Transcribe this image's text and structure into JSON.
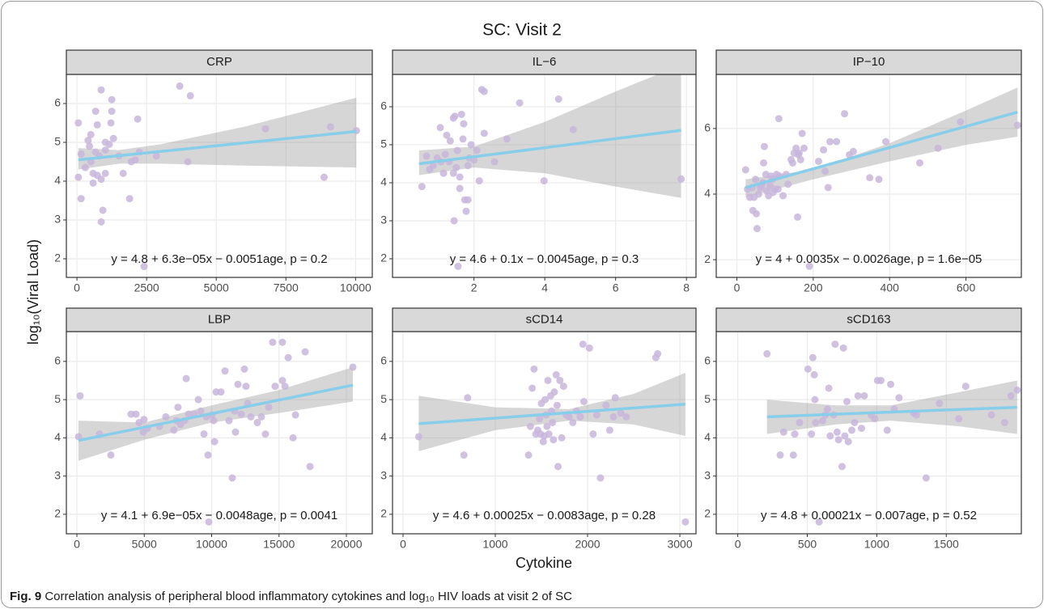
{
  "figure": {
    "title": "SC: Visit 2",
    "x_label": "Cytokine",
    "y_label": "log₁₀(Viral Load)",
    "caption_label": "Fig. 9",
    "caption_text": "Correlation analysis of peripheral blood inflammatory cytokines and log₁₀ HIV loads at visit 2 of SC"
  },
  "chart_data": [
    {
      "type": "scatter",
      "title": "CRP",
      "color": "#c8b6dc",
      "x": [
        50,
        150,
        50,
        150,
        300,
        400,
        500,
        450,
        500,
        580,
        580,
        670,
        730,
        670,
        730,
        800,
        870,
        870,
        870,
        930,
        1020,
        1020,
        1020,
        1160,
        1220,
        1250,
        1250,
        1310,
        1510,
        1660,
        1890,
        1950,
        2090,
        2180,
        2240,
        2410,
        2850,
        3690,
        3980,
        4070,
        6770,
        9100,
        8870,
        10030
      ],
      "y": [
        5.5,
        3.55,
        4.1,
        4.7,
        4.35,
        5.05,
        5.2,
        4.9,
        4.5,
        4.2,
        3.95,
        4.75,
        5.45,
        5.8,
        4.15,
        4.65,
        6.35,
        4.05,
        2.95,
        3.25,
        5.0,
        4.8,
        4.2,
        4.95,
        5.5,
        6.1,
        5.8,
        5.1,
        4.65,
        4.2,
        3.55,
        4.5,
        4.55,
        5.6,
        4.75,
        1.8,
        4.65,
        6.45,
        4.5,
        6.2,
        5.35,
        5.4,
        4.1,
        5.3
      ],
      "fit": {
        "x": [
          50,
          10030
        ],
        "y": [
          4.55,
          5.28
        ],
        "color": "#87ceeb"
      },
      "band": {
        "x": [
          50,
          1500,
          3000,
          6000,
          10030
        ],
        "lower": [
          4.3,
          4.45,
          4.45,
          4.4,
          4.35
        ],
        "upper": [
          4.85,
          4.8,
          4.95,
          5.4,
          6.15
        ],
        "color": "#999999"
      },
      "annotation": "y = 4.8 + 6.3e−05x − 0.0051age, p = 0.2",
      "xlim": [
        -380,
        10600
      ],
      "ylim": [
        1.52,
        6.75
      ],
      "xticks": [
        0,
        2500,
        5000,
        7500,
        10000
      ],
      "yticks": [
        2,
        3,
        4,
        5,
        6
      ],
      "grid": true
    },
    {
      "type": "scatter",
      "title": "IL−6",
      "color": "#c8b6dc",
      "x": [
        0.53,
        0.66,
        0.75,
        0.85,
        0.96,
        1.05,
        1.07,
        1.14,
        1.19,
        1.23,
        1.3,
        1.33,
        1.42,
        1.42,
        1.44,
        1.46,
        1.5,
        1.53,
        1.55,
        1.6,
        1.6,
        1.65,
        1.69,
        1.71,
        1.74,
        1.78,
        1.83,
        1.83,
        1.87,
        1.92,
        2.0,
        2.08,
        2.15,
        2.22,
        2.29,
        2.29,
        2.58,
        2.93,
        3.29,
        3.98,
        4.39,
        4.8,
        7.85
      ],
      "y": [
        3.9,
        4.7,
        4.35,
        4.45,
        4.65,
        5.45,
        4.55,
        4.25,
        4.75,
        5.25,
        4.55,
        5.1,
        5.7,
        4.25,
        3.0,
        5.75,
        4.4,
        4.85,
        1.8,
        3.85,
        4.15,
        5.8,
        5.15,
        5.55,
        3.55,
        3.25,
        3.55,
        4.45,
        4.65,
        5.0,
        4.6,
        4.85,
        4.05,
        6.45,
        6.4,
        5.3,
        4.55,
        5.15,
        6.1,
        4.05,
        6.2,
        5.4,
        4.1
      ],
      "fit": {
        "x": [
          0.45,
          7.85
        ],
        "y": [
          4.5,
          5.38
        ],
        "color": "#87ceeb"
      },
      "band": {
        "x": [
          0.45,
          2,
          4,
          6,
          7.85
        ],
        "lower": [
          4.2,
          4.4,
          4.25,
          3.9,
          3.6
        ],
        "upper": [
          4.85,
          4.95,
          5.6,
          6.4,
          7.1
        ],
        "color": "#999999"
      },
      "annotation": "y = 4.6 + 0.1x − 0.0045age, p = 0.3",
      "xlim": [
        -0.3,
        8.27
      ],
      "ylim": [
        1.51,
        6.85
      ],
      "xticks": [
        2,
        4,
        6,
        8
      ],
      "yticks": [
        2,
        3,
        4,
        5,
        6
      ],
      "grid": true
    },
    {
      "type": "scatter",
      "title": "IP−10",
      "color": "#c8b6dc",
      "x": [
        23,
        28,
        34,
        40,
        42,
        45,
        49,
        51,
        53,
        57,
        61,
        65,
        68,
        70,
        72,
        76,
        78,
        83,
        87,
        89,
        93,
        95,
        100,
        104,
        108,
        110,
        112,
        121,
        129,
        134,
        142,
        146,
        150,
        155,
        159,
        161,
        163,
        167,
        171,
        176,
        214,
        227,
        231,
        239,
        244,
        261,
        282,
        295,
        305,
        348,
        372,
        390,
        479,
        527,
        586,
        735,
        190
      ],
      "y": [
        4.74,
        4.15,
        3.9,
        4.2,
        3.5,
        3.9,
        4.45,
        3.4,
        2.95,
        4.0,
        4.2,
        4.25,
        4.35,
        4.95,
        5.45,
        4.6,
        4.1,
        3.95,
        4.25,
        4.55,
        4.45,
        4.05,
        4.15,
        4.6,
        4.15,
        6.3,
        4.55,
        3.95,
        4.6,
        4.3,
        5.05,
        4.95,
        5.25,
        5.4,
        3.3,
        5.2,
        5.25,
        5.05,
        5.85,
        5.4,
        5.0,
        5.35,
        4.7,
        4.2,
        5.6,
        5.6,
        6.45,
        5.2,
        5.3,
        4.5,
        4.45,
        5.6,
        4.95,
        5.4,
        6.2,
        6.1,
        1.8
      ],
      "fit": {
        "x": [
          23,
          735
        ],
        "y": [
          4.2,
          6.5
        ],
        "color": "#87ceeb"
      },
      "band": {
        "x": [
          23,
          200,
          400,
          600,
          735
        ],
        "lower": [
          3.9,
          4.45,
          5.0,
          5.5,
          5.75
        ],
        "upper": [
          4.45,
          4.75,
          5.55,
          6.55,
          7.25
        ],
        "color": "#999999"
      },
      "annotation": "y = 4 + 0.0035x − 0.0026age, p = 1.6e−05",
      "xlim": [
        -54,
        745
      ],
      "ylim": [
        1.46,
        7.65
      ],
      "xticks": [
        0,
        200,
        400,
        600
      ],
      "yticks": [
        2,
        4,
        6
      ],
      "grid": true
    },
    {
      "type": "scatter",
      "title": "LBP",
      "color": "#c8b6dc",
      "x": [
        120,
        240,
        1680,
        2520,
        4020,
        4380,
        4620,
        4920,
        4980,
        5230,
        6130,
        6600,
        7200,
        7390,
        7500,
        7690,
        7990,
        8110,
        8290,
        8710,
        9010,
        9190,
        9430,
        9610,
        9730,
        9790,
        10030,
        10150,
        10210,
        10330,
        10690,
        10990,
        11290,
        11530,
        11710,
        11770,
        11950,
        12190,
        12430,
        12550,
        12670,
        12910,
        13390,
        13690,
        13990,
        14230,
        14530,
        14710,
        15250,
        15250,
        15440,
        15680,
        16040,
        16220,
        16940,
        17300,
        20480
      ],
      "y": [
        4.03,
        5.1,
        4.1,
        3.55,
        4.62,
        4.62,
        4.4,
        4.15,
        4.48,
        4.25,
        4.3,
        4.55,
        4.2,
        4.45,
        4.8,
        4.35,
        4.45,
        5.55,
        4.62,
        4.62,
        5.0,
        4.7,
        4.1,
        4.55,
        3.55,
        1.8,
        4.6,
        4.45,
        3.9,
        5.2,
        5.2,
        5.75,
        4.45,
        2.95,
        4.7,
        4.15,
        5.4,
        4.62,
        5.8,
        5.35,
        4.9,
        4.55,
        4.4,
        4.55,
        4.1,
        4.8,
        6.5,
        5.35,
        6.5,
        5.5,
        5.35,
        6.1,
        4.0,
        4.6,
        6.25,
        3.25,
        5.85
      ],
      "fit": {
        "x": [
          120,
          20480
        ],
        "y": [
          3.93,
          5.38
        ],
        "color": "#87ceeb"
      },
      "band": {
        "x": [
          120,
          5000,
          10000,
          15000,
          20480
        ],
        "lower": [
          3.4,
          3.95,
          4.4,
          4.65,
          4.95
        ],
        "upper": [
          4.45,
          4.4,
          4.85,
          5.25,
          5.85
        ],
        "color": "#999999"
      },
      "annotation": "y = 4.1 + 6.9e−05x − 0.0048age, p = 0.0041",
      "xlim": [
        -780,
        21920
      ],
      "ylim": [
        1.49,
        6.78
      ],
      "xticks": [
        0,
        5000,
        10000,
        15000,
        20000
      ],
      "yticks": [
        2,
        3,
        4,
        5,
        6
      ],
      "grid": true
    },
    {
      "type": "scatter",
      "title": "sCD14",
      "color": "#c8b6dc",
      "x": [
        170,
        660,
        700,
        1360,
        1380,
        1400,
        1420,
        1440,
        1460,
        1480,
        1490,
        1500,
        1520,
        1530,
        1540,
        1550,
        1560,
        1570,
        1580,
        1600,
        1610,
        1620,
        1630,
        1640,
        1660,
        1670,
        1680,
        1700,
        1720,
        1740,
        1770,
        1800,
        1840,
        1880,
        1920,
        1950,
        1960,
        2020,
        2060,
        2100,
        2140,
        2200,
        2240,
        2280,
        2300,
        2360,
        2420,
        2740,
        2760,
        3060
      ],
      "y": [
        4.03,
        3.55,
        5.05,
        3.55,
        4.3,
        5.3,
        5.8,
        4.1,
        4.2,
        4.5,
        4.1,
        4.9,
        3.9,
        4.05,
        5.0,
        4.6,
        4.3,
        5.5,
        4.1,
        5.1,
        4.7,
        4.4,
        3.95,
        5.2,
        5.65,
        4.85,
        3.25,
        5.5,
        4.0,
        5.35,
        4.6,
        4.55,
        4.4,
        4.7,
        4.55,
        6.45,
        4.95,
        6.35,
        4.1,
        4.6,
        2.95,
        4.85,
        4.2,
        4.55,
        5.05,
        4.65,
        4.55,
        6.1,
        6.2,
        1.8
      ],
      "fit": {
        "x": [
          170,
          3060
        ],
        "y": [
          4.37,
          4.88
        ],
        "color": "#87ceeb"
      },
      "band": {
        "x": [
          170,
          1000,
          1800,
          2500,
          3060
        ],
        "lower": [
          3.65,
          4.2,
          4.45,
          4.35,
          4.05
        ],
        "upper": [
          5.1,
          4.8,
          4.75,
          5.15,
          5.7
        ],
        "color": "#999999"
      },
      "annotation": "y = 4.6 + 0.00025x − 0.0083age, p = 0.28",
      "xlim": [
        -114,
        3175
      ],
      "ylim": [
        1.49,
        6.78
      ],
      "xticks": [
        0,
        1000,
        2000,
        3000
      ],
      "yticks": [
        2,
        3,
        4,
        5,
        6
      ],
      "grid": true
    },
    {
      "type": "scatter",
      "title": "sCD163",
      "color": "#c8b6dc",
      "x": [
        210,
        305,
        330,
        400,
        410,
        445,
        505,
        530,
        540,
        550,
        555,
        560,
        585,
        610,
        630,
        645,
        655,
        665,
        690,
        700,
        715,
        725,
        750,
        760,
        770,
        785,
        795,
        820,
        840,
        865,
        890,
        910,
        960,
        985,
        1005,
        1030,
        1075,
        1100,
        1125,
        1160,
        1265,
        1285,
        1355,
        1450,
        1590,
        1640,
        1825,
        1920,
        1965,
        2010
      ],
      "y": [
        6.2,
        3.55,
        4.15,
        3.55,
        4.1,
        4.4,
        5.8,
        4.1,
        6.1,
        5.65,
        5.0,
        4.4,
        1.8,
        4.45,
        4.6,
        4.75,
        5.3,
        4.05,
        4.6,
        6.45,
        4.15,
        3.95,
        3.25,
        6.35,
        4.05,
        4.95,
        3.9,
        4.2,
        4.4,
        5.1,
        4.25,
        5.1,
        4.6,
        4.5,
        5.5,
        5.5,
        4.2,
        5.4,
        4.75,
        5.05,
        4.65,
        4.6,
        2.95,
        4.9,
        4.5,
        5.35,
        4.6,
        4.4,
        5.1,
        5.25
      ],
      "fit": {
        "x": [
          210,
          2010
        ],
        "y": [
          4.55,
          4.8
        ],
        "color": "#87ceeb"
      },
      "band": {
        "x": [
          210,
          700,
          1100,
          1600,
          2010
        ],
        "lower": [
          4.1,
          4.35,
          4.45,
          4.3,
          4.1
        ],
        "upper": [
          5.0,
          4.85,
          4.85,
          5.2,
          5.5
        ],
        "color": "#999999"
      },
      "annotation": "y = 4.8 + 0.00021x − 0.007age, p = 0.52",
      "xlim": [
        -155,
        2040
      ],
      "ylim": [
        1.49,
        6.78
      ],
      "xticks": [
        0,
        500,
        1000,
        1500
      ],
      "yticks": [
        2,
        3,
        4,
        5,
        6
      ],
      "grid": true
    }
  ]
}
